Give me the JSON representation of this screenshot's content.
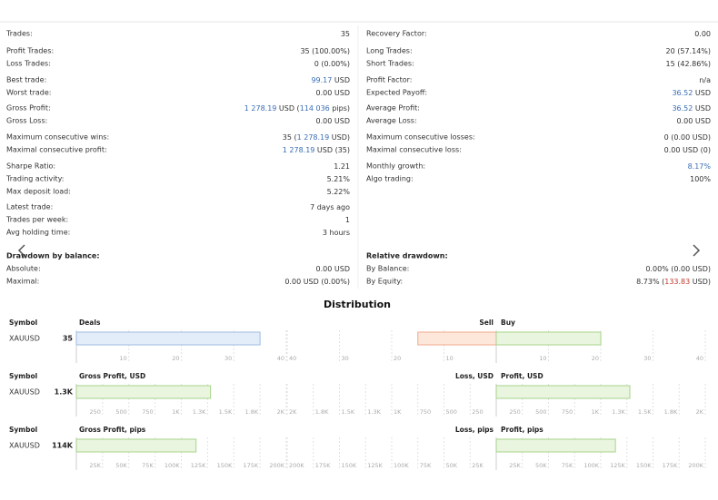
{
  "stats": {
    "left": [
      [
        {
          "label": "Trades:",
          "value": [
            "35"
          ]
        }
      ],
      [
        {
          "label": "Profit Trades:",
          "value": [
            "35 (100.00%)"
          ]
        },
        {
          "label": "Loss Trades:",
          "value": [
            "0 (0.00%)"
          ]
        }
      ],
      [
        {
          "label": "Best trade:",
          "value": [
            {
              "text": "99.17",
              "color": "#3a6db5"
            },
            " USD"
          ]
        },
        {
          "label": "Worst trade:",
          "value": [
            "0.00 USD"
          ]
        }
      ],
      [
        {
          "label": "Gross Profit:",
          "value": [
            {
              "text": "1 278.19",
              "color": "#3a6db5"
            },
            " USD (",
            {
              "text": "114 036",
              "color": "#3a6db5"
            },
            " pips)"
          ]
        },
        {
          "label": "Gross Loss:",
          "value": [
            "0.00 USD"
          ]
        }
      ],
      [
        {
          "label": "Maximum consecutive wins:",
          "value": [
            "35 (",
            {
              "text": "1 278.19",
              "color": "#3a6db5"
            },
            " USD)"
          ]
        },
        {
          "label": "Maximal consecutive profit:",
          "value": [
            {
              "text": "1 278.19",
              "color": "#3a6db5"
            },
            " USD (35)"
          ]
        }
      ],
      [
        {
          "label": "Sharpe Ratio:",
          "value": [
            "1.21"
          ]
        },
        {
          "label": "Trading activity:",
          "value": [
            "5.21%"
          ]
        },
        {
          "label": "Max deposit load:",
          "value": [
            "5.22%"
          ]
        }
      ],
      [
        {
          "label": "Latest trade:",
          "value": [
            "7 days ago"
          ]
        },
        {
          "label": "Trades per week:",
          "value": [
            "1"
          ]
        },
        {
          "label": "Avg holding time:",
          "value": [
            "3 hours"
          ]
        }
      ]
    ],
    "right": [
      [
        {
          "label": "Recovery Factor:",
          "value": [
            "0.00"
          ]
        }
      ],
      [
        {
          "label": "Long Trades:",
          "value": [
            "20 (57.14%)"
          ]
        },
        {
          "label": "Short Trades:",
          "value": [
            "15 (42.86%)"
          ]
        }
      ],
      [
        {
          "label": "Profit Factor:",
          "value": [
            "n/a"
          ]
        },
        {
          "label": "Expected Payoff:",
          "value": [
            {
              "text": "36.52",
              "color": "#3a6db5"
            },
            " USD"
          ]
        }
      ],
      [
        {
          "label": "Average Profit:",
          "value": [
            {
              "text": "36.52",
              "color": "#3a6db5"
            },
            " USD"
          ]
        },
        {
          "label": "Average Loss:",
          "value": [
            "0.00 USD"
          ]
        }
      ],
      [
        {
          "label": "Maximum consecutive losses:",
          "value": [
            "0 (0.00 USD)"
          ]
        },
        {
          "label": "Maximal consecutive loss:",
          "value": [
            "0.00 USD (0)"
          ]
        }
      ],
      [
        {
          "label": "Monthly growth:",
          "value": [
            {
              "text": "8.17%",
              "color": "#3a6db5"
            }
          ]
        },
        {
          "label": "Algo trading:",
          "value": [
            "100%"
          ]
        }
      ]
    ]
  },
  "drawdown": {
    "left": {
      "title": "Drawdown by balance:",
      "rows": [
        {
          "label": "Absolute:",
          "value": [
            "0.00 USD"
          ]
        },
        {
          "label": "Maximal:",
          "value": [
            "0.00 USD (0.00%)"
          ]
        }
      ]
    },
    "right": {
      "title": "Relative drawdown:",
      "rows": [
        {
          "label": "By Balance:",
          "value": [
            "0.00% (0.00 USD)"
          ]
        },
        {
          "label": "By Equity:",
          "value": [
            "8.73% (",
            {
              "text": "133.83",
              "color": "#c0392b"
            },
            " USD)"
          ]
        }
      ]
    }
  },
  "distribution": {
    "title": "Distribution",
    "charts": [
      {
        "symbol_label": "Symbol",
        "symbol": "XAUUSD",
        "total": {
          "title": "Deals",
          "value": 35,
          "color": "#e3edf9",
          "stroke": "#9dbbe0",
          "xlim": [
            0,
            40
          ],
          "xticks": [
            10,
            20,
            30,
            40
          ]
        },
        "split": {
          "left_title": "Sell",
          "right_title": "Buy",
          "left_value": 15,
          "right_value": 20,
          "left_color": "#fde6da",
          "left_stroke": "#f0a98a",
          "right_color": "#e9f5df",
          "right_stroke": "#a6d38a",
          "xlim": [
            0,
            40
          ],
          "xticks": [
            10,
            20,
            30,
            40
          ]
        }
      },
      {
        "symbol_label": "Symbol",
        "symbol": "XAUUSD",
        "total": {
          "title": "Gross Profit, USD",
          "value": 1278.19,
          "value_label": "1.3K",
          "color": "#e9f5df",
          "stroke": "#a6d38a",
          "xlim": [
            0,
            2000
          ],
          "xticks": [
            250,
            500,
            750,
            {
              "value": 1000,
              "label": "1K"
            },
            {
              "value": 1250,
              "label": "1.3K"
            },
            {
              "value": 1500,
              "label": "1.5K"
            },
            {
              "value": 1750,
              "label": "1.8K"
            },
            {
              "value": 2000,
              "label": "2K"
            }
          ]
        },
        "split": {
          "left_title": "Loss, USD",
          "right_title": "Profit, USD",
          "left_value": 0,
          "right_value": 1278.19,
          "left_color": "#fde6da",
          "left_stroke": "#f0a98a",
          "right_color": "#e9f5df",
          "right_stroke": "#a6d38a",
          "xlim": [
            0,
            2000
          ],
          "xticks": [
            250,
            500,
            750,
            {
              "value": 1000,
              "label": "1K"
            },
            {
              "value": 1250,
              "label": "1.3K"
            },
            {
              "value": 1500,
              "label": "1.5K"
            },
            {
              "value": 1750,
              "label": "1.8K"
            },
            {
              "value": 2000,
              "label": "2K"
            }
          ]
        }
      },
      {
        "symbol_label": "Symbol",
        "symbol": "XAUUSD",
        "total": {
          "title": "Gross Profit, pips",
          "value": 114036,
          "value_label": "114K",
          "color": "#e9f5df",
          "stroke": "#a6d38a",
          "xlim": [
            0,
            200000
          ],
          "xticks": [
            {
              "value": 25000,
              "label": "25K"
            },
            {
              "value": 50000,
              "label": "50K"
            },
            {
              "value": 75000,
              "label": "75K"
            },
            {
              "value": 100000,
              "label": "100K"
            },
            {
              "value": 125000,
              "label": "125K"
            },
            {
              "value": 150000,
              "label": "150K"
            },
            {
              "value": 175000,
              "label": "175K"
            },
            {
              "value": 200000,
              "label": "200K"
            }
          ]
        },
        "split": {
          "left_title": "Loss, pips",
          "right_title": "Profit, pips",
          "left_value": 0,
          "right_value": 114036,
          "left_color": "#fde6da",
          "left_stroke": "#f0a98a",
          "right_color": "#e9f5df",
          "right_stroke": "#a6d38a",
          "xlim": [
            0,
            200000
          ],
          "xticks": [
            {
              "value": 25000,
              "label": "25K"
            },
            {
              "value": 50000,
              "label": "50K"
            },
            {
              "value": 75000,
              "label": "75K"
            },
            {
              "value": 100000,
              "label": "100K"
            },
            {
              "value": 125000,
              "label": "125K"
            },
            {
              "value": 150000,
              "label": "150K"
            },
            {
              "value": 175000,
              "label": "175K"
            },
            {
              "value": 200000,
              "label": "200K"
            }
          ]
        }
      }
    ]
  }
}
